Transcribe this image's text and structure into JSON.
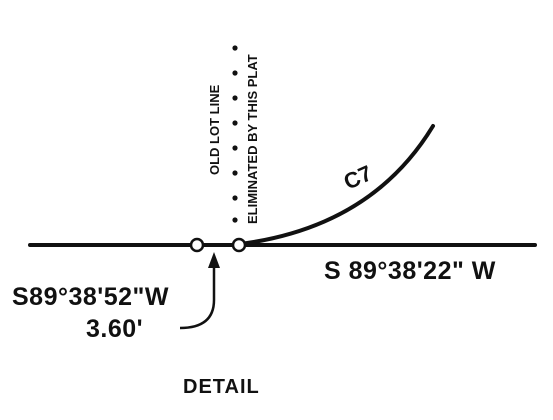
{
  "labels": {
    "old_lot_line": "OLD LOT LINE",
    "eliminated": "ELIMINATED BY THIS PLAT",
    "curve": "C7",
    "main_bearing": "S 89°38'22\" W",
    "short_bearing": "S89°38'52\"W",
    "short_distance": "3.60'",
    "title": "DETAIL"
  },
  "colors": {
    "ink": "#111111",
    "paper": "#ffffff"
  }
}
